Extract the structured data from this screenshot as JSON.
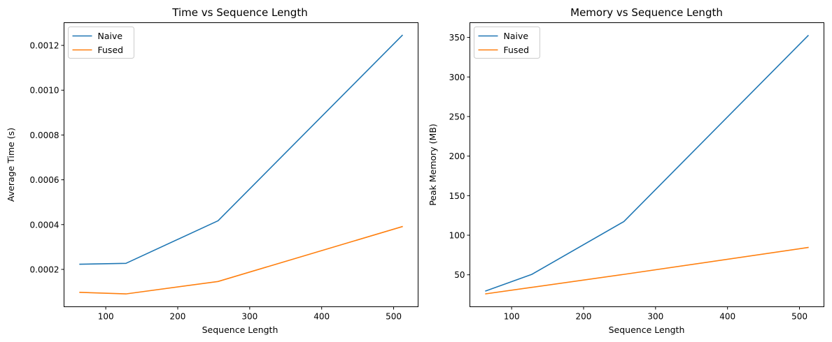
{
  "chart_data": [
    {
      "type": "line",
      "title": "Time vs Sequence Length",
      "xlabel": "Sequence Length",
      "ylabel": "Average Time (s)",
      "xlim": [
        42,
        534
      ],
      "ylim": [
        3.32e-05,
        0.0013014
      ],
      "x_ticks": [
        100,
        200,
        300,
        400,
        500
      ],
      "y_ticks": [
        0.0002,
        0.0004,
        0.0006,
        0.0008,
        0.001,
        0.0012
      ],
      "y_tick_labels": [
        "0.0002",
        "0.0004",
        "0.0006",
        "0.0008",
        "0.0010",
        "0.0012"
      ],
      "grid": false,
      "legend_position": "upper-left",
      "x": [
        64,
        128,
        256,
        512
      ],
      "series": [
        {
          "name": "Naive",
          "color": "#1f77b4",
          "values": [
            0.000223,
            0.000227,
            0.000417,
            0.001245
          ]
        },
        {
          "name": "Fused",
          "color": "#ff7f0e",
          "values": [
            9.75e-05,
            9.05e-05,
            0.000146,
            0.000391
          ]
        }
      ]
    },
    {
      "type": "line",
      "title": "Memory vs Sequence Length",
      "xlabel": "Sequence Length",
      "ylabel": "Peak Memory (MB)",
      "xlim": [
        42,
        534
      ],
      "ylim": [
        9.6,
        368.6
      ],
      "x_ticks": [
        100,
        200,
        300,
        400,
        500
      ],
      "y_ticks": [
        50,
        100,
        150,
        200,
        250,
        300,
        350
      ],
      "y_tick_labels": [
        "50",
        "100",
        "150",
        "200",
        "250",
        "300",
        "350"
      ],
      "grid": false,
      "legend_position": "upper-left",
      "x": [
        64,
        128,
        256,
        512
      ],
      "series": [
        {
          "name": "Naive",
          "color": "#1f77b4",
          "values": [
            29.6,
            50.5,
            117.3,
            352.3
          ]
        },
        {
          "name": "Fused",
          "color": "#ff7f0e",
          "values": [
            25.9,
            34.1,
            50.5,
            84.5
          ]
        }
      ]
    }
  ]
}
